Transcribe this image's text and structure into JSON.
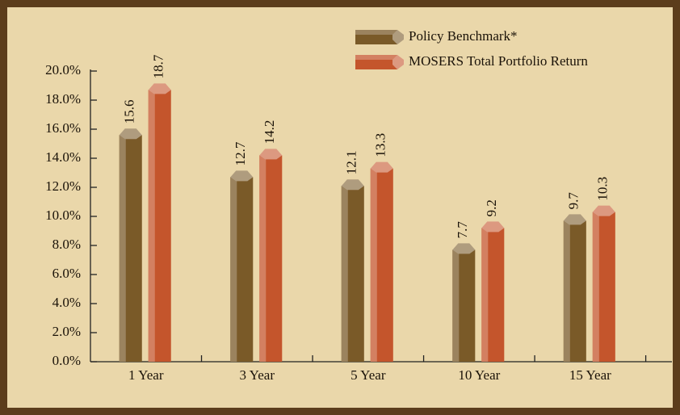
{
  "chart_data": {
    "type": "bar",
    "categories": [
      "1 Year",
      "3 Year",
      "5 Year",
      "10 Year",
      "15 Year"
    ],
    "series": [
      {
        "name": "Policy Benchmark*",
        "color": "#7a5a28",
        "values": [
          15.6,
          12.7,
          12.1,
          7.7,
          9.7
        ]
      },
      {
        "name": "MOSERS Total Portfolio Return",
        "color": "#c4552c",
        "values": [
          18.7,
          14.2,
          13.3,
          9.2,
          10.3
        ]
      }
    ],
    "ylim": [
      0,
      20
    ],
    "yticks": [
      {
        "value": 0,
        "label": "0.0%"
      },
      {
        "value": 2,
        "label": "2.0%"
      },
      {
        "value": 4,
        "label": "4.0%"
      },
      {
        "value": 6,
        "label": "6.0%"
      },
      {
        "value": 8,
        "label": "8.0%"
      },
      {
        "value": 10,
        "label": "10.0%"
      },
      {
        "value": 12,
        "label": "12.0%"
      },
      {
        "value": 14,
        "label": "14.0%"
      },
      {
        "value": 16,
        "label": "16.0%"
      },
      {
        "value": 18,
        "label": "18.0%"
      },
      {
        "value": 20,
        "label": "20.0%"
      }
    ],
    "legend": "top-right"
  }
}
